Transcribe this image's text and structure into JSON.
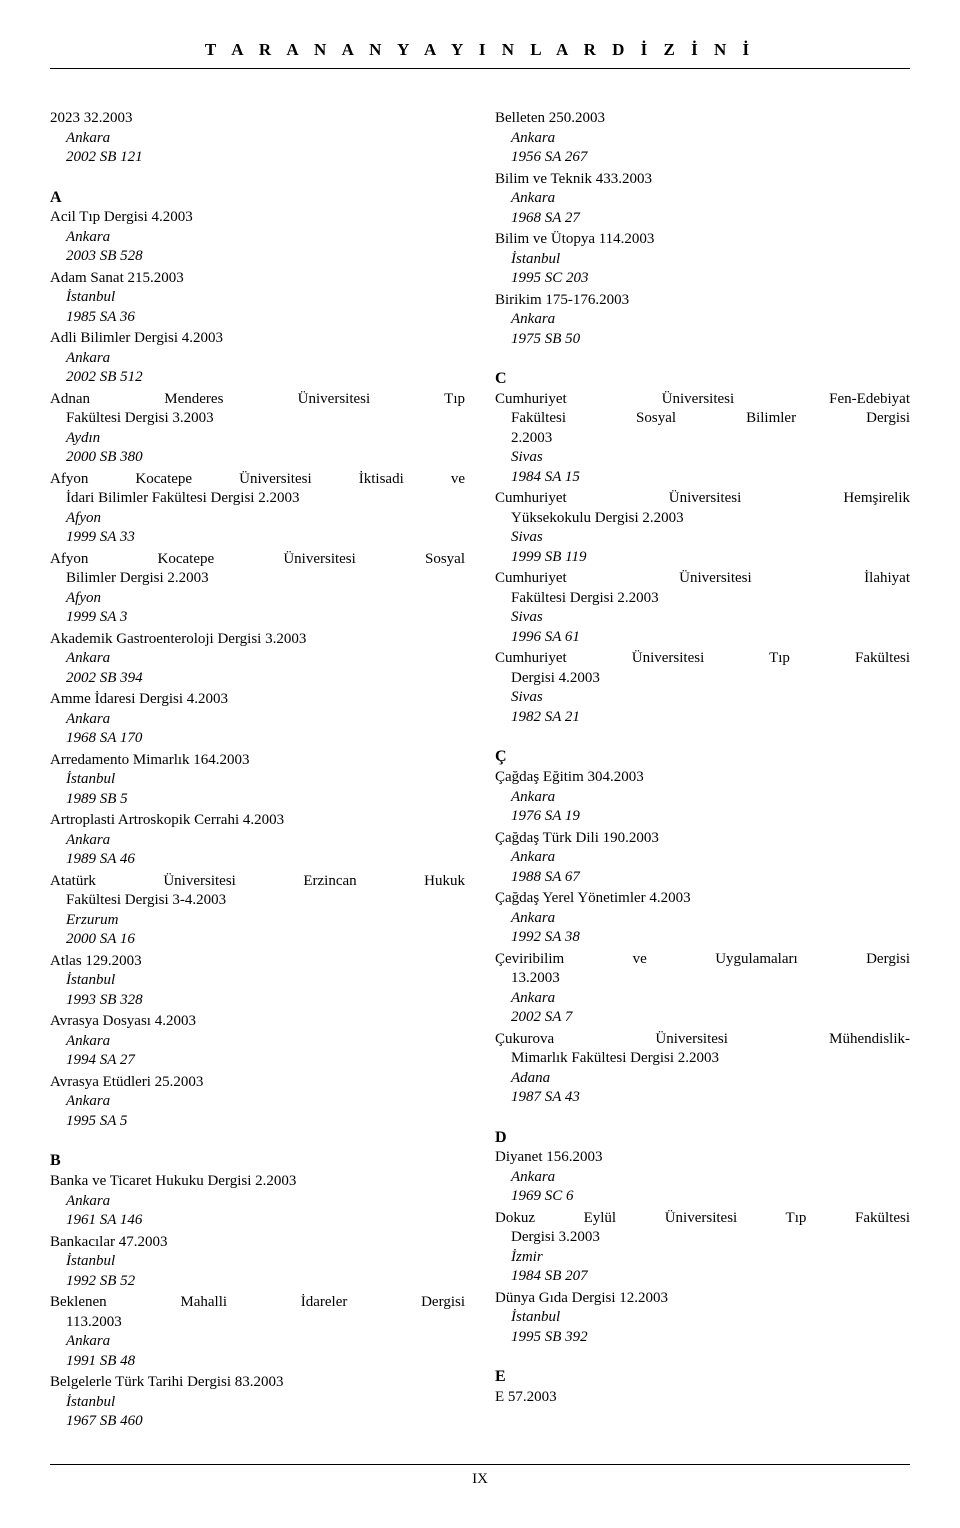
{
  "header": "T A R A N A N   Y A Y I N L A R   D İ Z İ N İ",
  "page_number": "IX",
  "left": {
    "top": [
      {
        "title": "2023  32.2003",
        "loc": "Ankara",
        "code": "2002 SB 121"
      }
    ],
    "A_label": "A",
    "A": [
      {
        "title": "Acil Tıp Dergisi  4.2003",
        "loc": "Ankara",
        "code": "2003 SB 528"
      },
      {
        "title": "Adam Sanat  215.2003",
        "loc": "İstanbul",
        "code": "1985 SA 36"
      },
      {
        "title": "Adli Bilimler Dergisi  4.2003",
        "loc": "Ankara",
        "code": "2002 SB 512"
      },
      {
        "title_lines": [
          "Adnan   Menderes   Üniversitesi   Tıp",
          "Fakültesi Dergisi  3.2003"
        ],
        "loc": "Aydın",
        "code": "2000 SB 380"
      },
      {
        "title_lines": [
          "Afyon  Kocatepe  Üniversitesi  İktisadi  ve",
          "İdari Bilimler Fakültesi Dergisi  2.2003"
        ],
        "loc": "Afyon",
        "code": "1999 SA 33"
      },
      {
        "title_lines": [
          "Afyon   Kocatepe   Üniversitesi   Sosyal",
          "Bilimler Dergisi  2.2003"
        ],
        "loc": "Afyon",
        "code": "1999 SA 3"
      },
      {
        "title": "Akademik Gastroenteroloji Dergisi  3.2003",
        "loc": "Ankara",
        "code": "2002 SB 394"
      },
      {
        "title": "Amme İdaresi Dergisi  4.2003",
        "loc": "Ankara",
        "code": "1968 SA 170"
      },
      {
        "title": "Arredamento Mimarlık  164.2003",
        "loc": "İstanbul",
        "code": "1989 SB 5"
      },
      {
        "title": "Artroplasti Artroskopik Cerrahi  4.2003",
        "loc": "Ankara",
        "code": "1989 SA 46"
      },
      {
        "title_lines": [
          "Atatürk   Üniversitesi   Erzincan   Hukuk",
          "Fakültesi Dergisi  3-4.2003"
        ],
        "loc": "Erzurum",
        "code": "2000 SA 16"
      },
      {
        "title": "Atlas  129.2003",
        "loc": "İstanbul",
        "code": "1993 SB 328"
      },
      {
        "title": "Avrasya Dosyası  4.2003",
        "loc": "Ankara",
        "code": "1994 SA 27"
      },
      {
        "title": "Avrasya Etüdleri  25.2003",
        "loc": "Ankara",
        "code": "1995 SA 5"
      }
    ],
    "B_label": "B",
    "B": [
      {
        "title": "Banka ve Ticaret Hukuku Dergisi  2.2003",
        "loc": "Ankara",
        "code": "1961 SA 146"
      },
      {
        "title": "Bankacılar  47.2003",
        "loc": "İstanbul",
        "code": "1992 SB 52"
      },
      {
        "title_lines": [
          "Beklenen    Mahalli    İdareler    Dergisi",
          "113.2003"
        ],
        "loc": "Ankara",
        "code": "1991 SB 48"
      },
      {
        "title": "Belgelerle Türk Tarihi Dergisi  83.2003",
        "loc": "İstanbul",
        "code": "1967 SB 460"
      }
    ]
  },
  "right": {
    "top": [
      {
        "title": "Belleten  250.2003",
        "loc": "Ankara",
        "code": "1956 SA 267"
      },
      {
        "title": "Bilim ve Teknik  433.2003",
        "loc": "Ankara",
        "code": "1968 SA 27"
      },
      {
        "title": "Bilim ve Ütopya  114.2003",
        "loc": "İstanbul",
        "code": "1995 SC 203"
      },
      {
        "title": "Birikim  175-176.2003",
        "loc": "Ankara",
        "code": "1975 SB 50"
      }
    ],
    "C_label": "C",
    "C": [
      {
        "title_lines": [
          "Cumhuriyet   Üniversitesi   Fen-Edebiyat",
          "Fakültesi   Sosyal   Bilimler   Dergisi",
          "2.2003"
        ],
        "loc": "Sivas",
        "code": "1984 SA 15"
      },
      {
        "title_lines": [
          "Cumhuriyet    Üniversitesi    Hemşirelik",
          "Yüksekokulu Dergisi  2.2003"
        ],
        "loc": "Sivas",
        "code": "1999 SB 119"
      },
      {
        "title_lines": [
          "Cumhuriyet     Üniversitesi     İlahiyat",
          "Fakültesi Dergisi  2.2003"
        ],
        "loc": "Sivas",
        "code": "1996 SA 61"
      },
      {
        "title_lines": [
          "Cumhuriyet   Üniversitesi   Tıp   Fakültesi",
          "Dergisi  4.2003"
        ],
        "loc": "Sivas",
        "code": "1982 SA 21"
      }
    ],
    "Cc_label": "Ç",
    "Cc": [
      {
        "title": "Çağdaş Eğitim  304.2003",
        "loc": "Ankara",
        "code": "1976 SA 19"
      },
      {
        "title": "Çağdaş Türk Dili  190.2003",
        "loc": "Ankara",
        "code": "1988 SA 67"
      },
      {
        "title": "Çağdaş Yerel Yönetimler  4.2003",
        "loc": "Ankara",
        "code": "1992 SA 38"
      },
      {
        "title_lines": [
          "Çeviribilim   ve   Uygulamaları   Dergisi",
          "13.2003"
        ],
        "loc": "Ankara",
        "code": "2002 SA 7"
      },
      {
        "title_lines": [
          "Çukurova    Üniversitesi    Mühendislik-",
          "Mimarlık Fakültesi Dergisi  2.2003"
        ],
        "loc": "Adana",
        "code": "1987 SA 43"
      }
    ],
    "D_label": "D",
    "D": [
      {
        "title": "Diyanet  156.2003",
        "loc": "Ankara",
        "code": "1969 SC 6"
      },
      {
        "title_lines": [
          "Dokuz  Eylül  Üniversitesi  Tıp   Fakültesi",
          "Dergisi  3.2003"
        ],
        "loc": "İzmir",
        "code": "1984 SB 207"
      },
      {
        "title": "Dünya Gıda Dergisi  12.2003",
        "loc": "İstanbul",
        "code": "1995 SB 392"
      }
    ],
    "E_label": "E",
    "E": [
      {
        "title": "E  57.2003"
      }
    ]
  }
}
